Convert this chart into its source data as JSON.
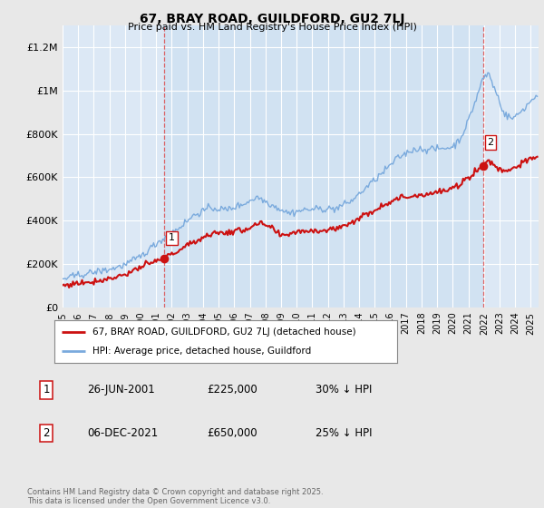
{
  "title": "67, BRAY ROAD, GUILDFORD, GU2 7LJ",
  "subtitle": "Price paid vs. HM Land Registry's House Price Index (HPI)",
  "hpi_color": "#7aaadd",
  "property_color": "#cc1111",
  "vline_color": "#dd4444",
  "background_color": "#e8e8e8",
  "plot_bg_color": "#dce8f5",
  "ylim": [
    0,
    1300000
  ],
  "yticks": [
    0,
    200000,
    400000,
    600000,
    800000,
    1000000,
    1200000
  ],
  "ytick_labels": [
    "£0",
    "£200K",
    "£400K",
    "£600K",
    "£800K",
    "£1M",
    "£1.2M"
  ],
  "sale1_date_num": 2001.49,
  "sale1_price": 225000,
  "sale2_date_num": 2021.93,
  "sale2_price": 650000,
  "legend_property": "67, BRAY ROAD, GUILDFORD, GU2 7LJ (detached house)",
  "legend_hpi": "HPI: Average price, detached house, Guildford",
  "footer": "Contains HM Land Registry data © Crown copyright and database right 2025.\nThis data is licensed under the Open Government Licence v3.0.",
  "xmin": 1995.0,
  "xmax": 2025.5
}
